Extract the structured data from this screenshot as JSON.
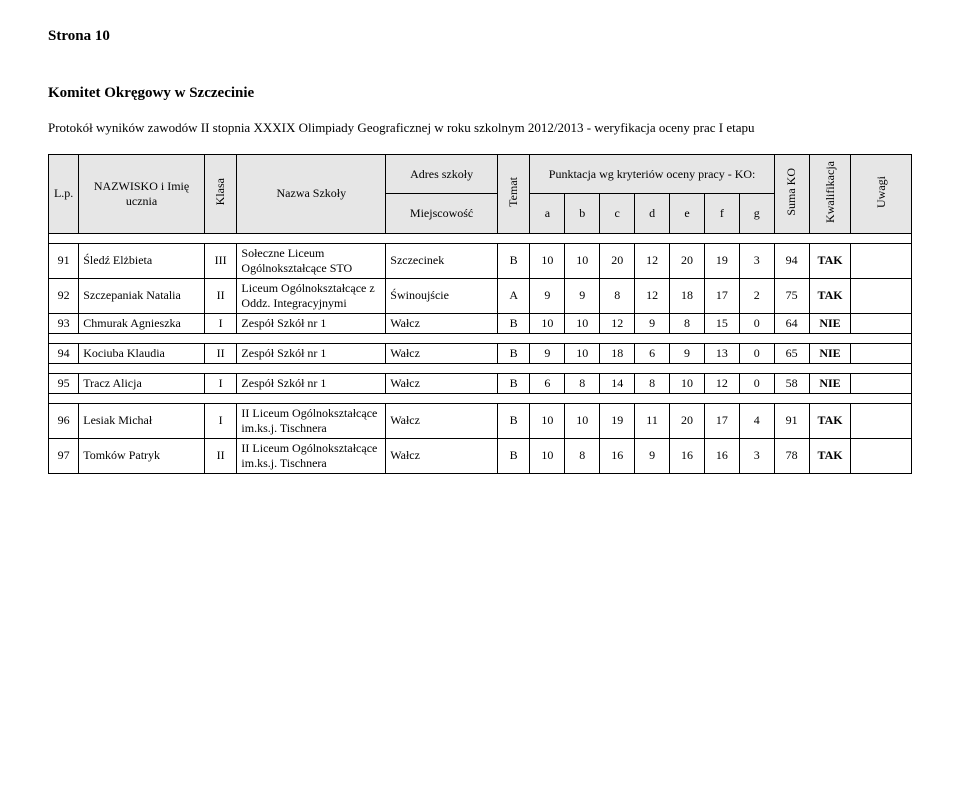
{
  "page_label": "Strona 10",
  "committee": "Komitet Okręgowy w Szczecinie",
  "protocol": "Protokół wyników zawodów II stopnia XXXIX Olimpiady Geograficznej w roku szkolnym 2012/2013 - weryfikacja oceny prac I etapu",
  "header": {
    "lp": "L.p.",
    "name": "NAZWISKO i Imię ucznia",
    "klasa": "Klasa",
    "school": "Nazwa Szkoły",
    "addr": "Adres szkoły",
    "city": "Miejscowość",
    "temat": "Temat",
    "scores_group": "Punktacja wg kryteriów oceny pracy - KO:",
    "score_cols": [
      "a",
      "b",
      "c",
      "d",
      "e",
      "f",
      "g"
    ],
    "suma": "Suma KO",
    "kwal": "Kwalifikacja",
    "uwagi": "Uwagi"
  },
  "rows": [
    {
      "lp": "91",
      "name": "Śledź Elżbieta",
      "klasa": "III",
      "school": "Sołeczne Liceum Ogólnokształcące STO",
      "city": "Szczecinek",
      "temat": "B",
      "s": [
        "10",
        "10",
        "20",
        "12",
        "20",
        "19",
        "3"
      ],
      "suma": "94",
      "kwal": "TAK",
      "uwagi": ""
    },
    {
      "lp": "92",
      "name": "Szczepaniak Natalia",
      "klasa": "II",
      "school": "Liceum Ogólnokształcące z Oddz. Integracyjnymi",
      "city": "Świnoujście",
      "temat": "A",
      "s": [
        "9",
        "9",
        "8",
        "12",
        "18",
        "17",
        "2"
      ],
      "suma": "75",
      "kwal": "TAK",
      "uwagi": ""
    },
    {
      "lp": "93",
      "name": "Chmurak Agnieszka",
      "klasa": "I",
      "school": "Zespół Szkół nr 1",
      "city": "Wałcz",
      "temat": "B",
      "s": [
        "10",
        "10",
        "12",
        "9",
        "8",
        "15",
        "0"
      ],
      "suma": "64",
      "kwal": "NIE",
      "uwagi": ""
    },
    {
      "lp": "94",
      "name": "Kociuba Klaudia",
      "klasa": "II",
      "school": "Zespół Szkół nr 1",
      "city": "Wałcz",
      "temat": "B",
      "s": [
        "9",
        "10",
        "18",
        "6",
        "9",
        "13",
        "0"
      ],
      "suma": "65",
      "kwal": "NIE",
      "uwagi": ""
    },
    {
      "lp": "95",
      "name": "Tracz Alicja",
      "klasa": "I",
      "school": "Zespół Szkół nr 1",
      "city": "Wałcz",
      "temat": "B",
      "s": [
        "6",
        "8",
        "14",
        "8",
        "10",
        "12",
        "0"
      ],
      "suma": "58",
      "kwal": "NIE",
      "uwagi": ""
    },
    {
      "lp": "96",
      "name": "Lesiak Michał",
      "klasa": "I",
      "school": "II Liceum Ogólnokształcące im.ks.j. Tischnera",
      "city": "Wałcz",
      "temat": "B",
      "s": [
        "10",
        "10",
        "19",
        "11",
        "20",
        "17",
        "4"
      ],
      "suma": "91",
      "kwal": "TAK",
      "uwagi": ""
    },
    {
      "lp": "97",
      "name": "Tomków Patryk",
      "klasa": "II",
      "school": "II Liceum Ogólnokształcące im.ks.j. Tischnera",
      "city": "Wałcz",
      "temat": "B",
      "s": [
        "10",
        "8",
        "16",
        "9",
        "16",
        "16",
        "3"
      ],
      "suma": "78",
      "kwal": "TAK",
      "uwagi": ""
    }
  ],
  "groups": [
    [
      0,
      1,
      2
    ],
    [
      3
    ],
    [
      4
    ],
    [
      5,
      6
    ]
  ]
}
